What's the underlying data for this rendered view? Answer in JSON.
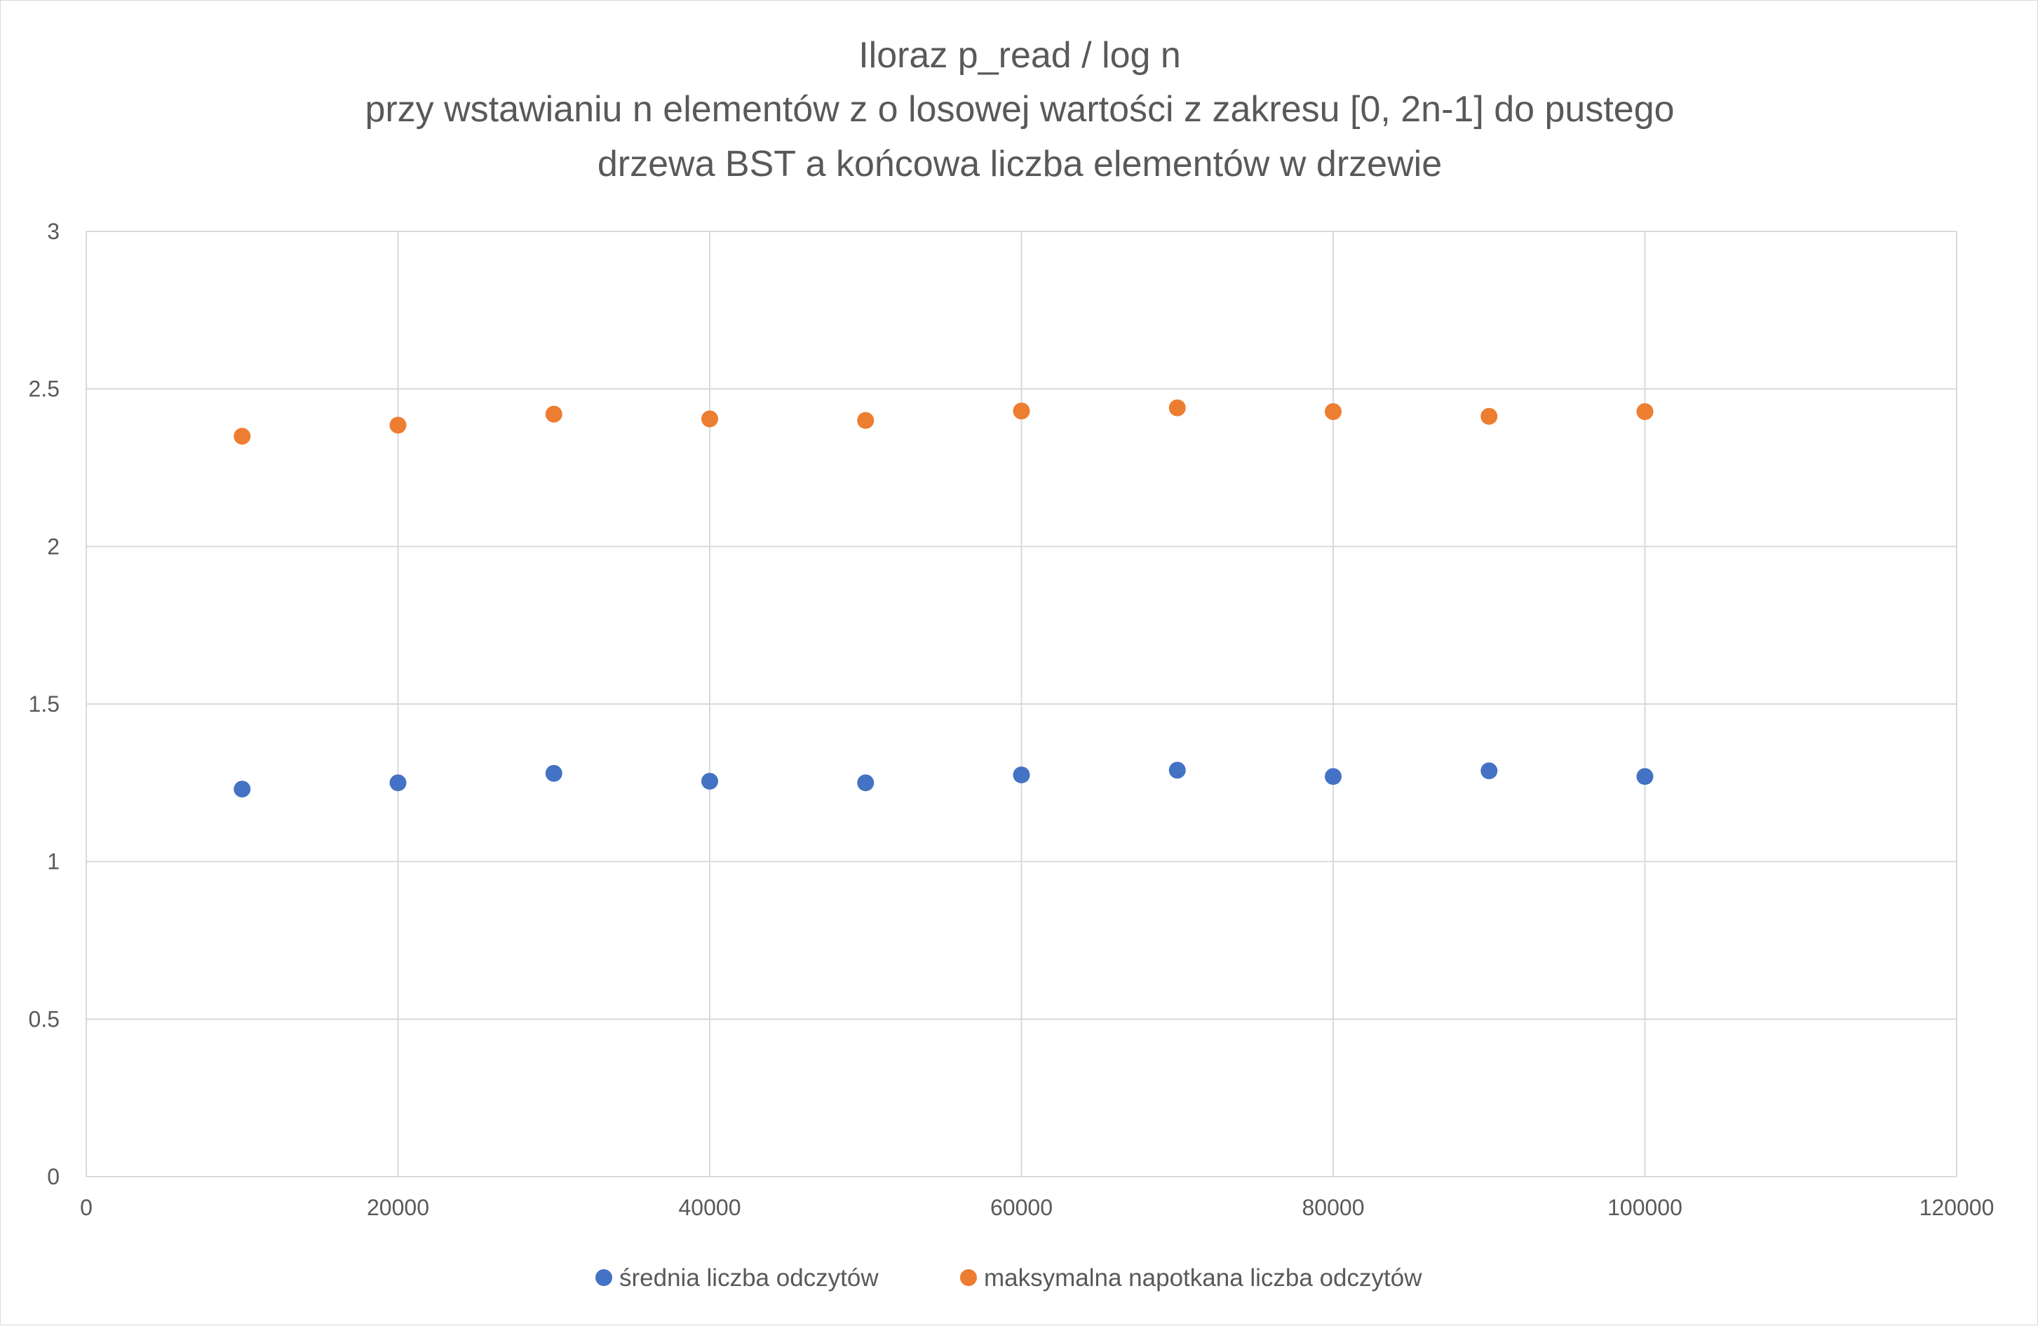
{
  "chart_data": {
    "type": "scatter",
    "title": [
      "Iloraz p_read / log n",
      "przy wstawianiu n elementów z o losowej wartości z zakresu [0, 2n-1] do pustego",
      "drzewa BST a końcowa liczba elementów w drzewie"
    ],
    "xlabel": "",
    "ylabel": "",
    "xlim": [
      0,
      120000
    ],
    "ylim": [
      0,
      3
    ],
    "xticks": [
      0,
      20000,
      40000,
      60000,
      80000,
      100000,
      120000
    ],
    "yticks": [
      0,
      0.5,
      1,
      1.5,
      2,
      2.5,
      3
    ],
    "xtick_labels": [
      "0",
      "20000",
      "40000",
      "60000",
      "80000",
      "100000",
      "120000"
    ],
    "ytick_labels": [
      "0",
      "0.5",
      "1",
      "1.5",
      "2",
      "2.5",
      "3"
    ],
    "grid": true,
    "legend_position": "bottom",
    "series": [
      {
        "name": "średnia liczba odczytów",
        "color": "#4472c4",
        "x": [
          10000,
          20000,
          30000,
          40000,
          50000,
          60000,
          70000,
          80000,
          90000,
          100000
        ],
        "y": [
          1.23,
          1.25,
          1.28,
          1.255,
          1.25,
          1.275,
          1.29,
          1.27,
          1.288,
          1.27
        ]
      },
      {
        "name": "maksymalna napotkana liczba odczytów",
        "color": "#ed7d31",
        "x": [
          10000,
          20000,
          30000,
          40000,
          50000,
          60000,
          70000,
          80000,
          90000,
          100000
        ],
        "y": [
          2.35,
          2.385,
          2.42,
          2.405,
          2.4,
          2.43,
          2.44,
          2.428,
          2.413,
          2.428
        ]
      }
    ]
  }
}
